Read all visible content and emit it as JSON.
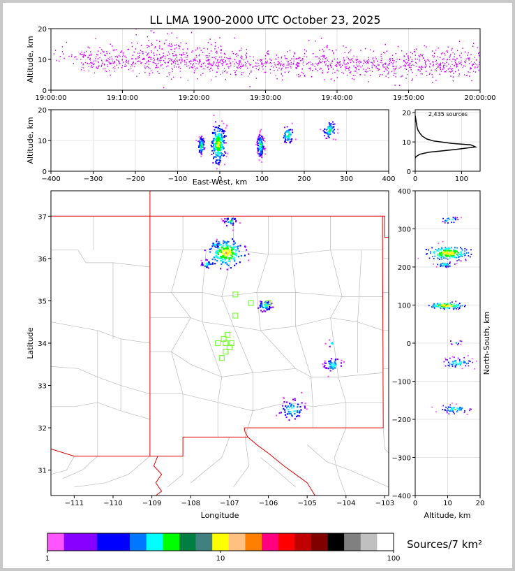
{
  "title": "LL LMA 1900-2000 UTC October 23, 2025",
  "colorbar": {
    "label": "Sources/7 km²",
    "ticks": [
      "1",
      "10",
      "100"
    ],
    "colors": [
      "#ff55ff",
      "#8800ff",
      "#8800ff",
      "#0000ff",
      "#0000ff",
      "#0077ff",
      "#00ffff",
      "#00ff00",
      "#008040",
      "#408080",
      "#ffff00",
      "#ffc080",
      "#ff8000",
      "#ff0080",
      "#ff0000",
      "#c00000",
      "#800000",
      "#000000",
      "#808080",
      "#c0c0c0",
      "#ffffff"
    ]
  },
  "chart_data": [
    {
      "id": "time-height",
      "type": "scatter",
      "ylabel": "Altitude, km",
      "xticks": [
        "19:00:00",
        "19:10:00",
        "19:20:00",
        "19:30:00",
        "19:40:00",
        "19:50:00",
        "20:00:00"
      ],
      "yticks": [
        "0",
        "10",
        "20"
      ],
      "xlim": [
        "19:00:00",
        "20:00:00"
      ],
      "ylim": [
        0,
        20
      ],
      "point_color": "#cc00ff",
      "point_clusters_minutes": [
        [
          5,
          12,
          2
        ],
        [
          11,
          11,
          2
        ],
        [
          14,
          13,
          3
        ],
        [
          17,
          12,
          3
        ],
        [
          19,
          11,
          3
        ],
        [
          24,
          10,
          3
        ],
        [
          27,
          9,
          2
        ],
        [
          35,
          9,
          3
        ],
        [
          39,
          9,
          3
        ],
        [
          45,
          8,
          3
        ],
        [
          50,
          9,
          3
        ],
        [
          55,
          9,
          3
        ],
        [
          58,
          9,
          3
        ]
      ]
    },
    {
      "id": "east-west-altitude",
      "type": "scatter",
      "xlabel": "East-West, km",
      "ylabel": "Altitude, km",
      "xticks": [
        "−400",
        "−300",
        "−200",
        "−100",
        "0",
        "100",
        "200",
        "300",
        "400"
      ],
      "yticks": [
        "0",
        "10",
        "20"
      ],
      "xlim": [
        -400,
        400
      ],
      "ylim": [
        0,
        20
      ],
      "clusters": [
        {
          "x": -45,
          "y": 8.5,
          "sx": 4,
          "sy": 1.5,
          "n": 80
        },
        {
          "x": -5,
          "y": 9,
          "sx": 8,
          "sy": 3,
          "n": 260
        },
        {
          "x": 95,
          "y": 8.5,
          "sx": 4,
          "sy": 2,
          "n": 120
        },
        {
          "x": 160,
          "y": 12,
          "sx": 7,
          "sy": 1.5,
          "n": 60
        },
        {
          "x": 258,
          "y": 13.5,
          "sx": 8,
          "sy": 1.5,
          "n": 70
        }
      ]
    },
    {
      "id": "altitude-histogram",
      "type": "line",
      "annotation": "2,435 sources",
      "xticks": [
        "0",
        "100"
      ],
      "yticks": [
        "0",
        "10",
        "20"
      ],
      "xlim": [
        0,
        140
      ],
      "ylim": [
        0,
        21
      ],
      "profile": [
        [
          0,
          4.5
        ],
        [
          2,
          5
        ],
        [
          10,
          5.8
        ],
        [
          30,
          6.5
        ],
        [
          60,
          7
        ],
        [
          90,
          7.5
        ],
        [
          130,
          8.3
        ],
        [
          120,
          9
        ],
        [
          80,
          9.5
        ],
        [
          40,
          10.3
        ],
        [
          25,
          11
        ],
        [
          15,
          12
        ],
        [
          10,
          13
        ],
        [
          6,
          14
        ],
        [
          4,
          15
        ],
        [
          3,
          16
        ],
        [
          2,
          17
        ],
        [
          1,
          18
        ],
        [
          0,
          19
        ]
      ]
    },
    {
      "id": "plan-view-map",
      "type": "scatter",
      "xlabel": "Longitude",
      "ylabel": "Latitude",
      "xticks": [
        "−111",
        "−110",
        "−109",
        "−108",
        "−107",
        "−106",
        "−105",
        "−104",
        "−103"
      ],
      "yticks": [
        "31",
        "32",
        "33",
        "34",
        "35",
        "36",
        "37"
      ],
      "xlim": [
        -111.6,
        -102.9
      ],
      "ylim": [
        30.4,
        37.6
      ],
      "stations_marker": "light-green open squares",
      "stations": [
        [
          -107.15,
          34.1
        ],
        [
          -107.3,
          34.0
        ],
        [
          -107.1,
          34.0
        ],
        [
          -106.95,
          34.0
        ],
        [
          -107.0,
          33.9
        ],
        [
          -107.1,
          33.8
        ],
        [
          -107.2,
          33.65
        ],
        [
          -107.05,
          34.2
        ],
        [
          -106.85,
          34.65
        ],
        [
          -106.85,
          35.15
        ],
        [
          -106.45,
          34.95
        ],
        [
          -106.0,
          34.95
        ]
      ],
      "clusters": [
        {
          "lon": -107.0,
          "lat": 36.9,
          "s": 0.06,
          "n": 30
        },
        {
          "lon": -107.4,
          "lat": 36.35,
          "s": 0.05,
          "n": 20
        },
        {
          "lon": -107.1,
          "lat": 36.15,
          "s": 0.14,
          "n": 180
        },
        {
          "lon": -107.6,
          "lat": 35.88,
          "s": 0.05,
          "n": 25
        },
        {
          "lon": -106.1,
          "lat": 34.9,
          "s": 0.07,
          "n": 50
        },
        {
          "lon": -104.35,
          "lat": 33.5,
          "s": 0.08,
          "n": 45
        },
        {
          "lon": -104.4,
          "lat": 34.0,
          "s": 0.04,
          "n": 8
        },
        {
          "lon": -105.4,
          "lat": 32.45,
          "s": 0.12,
          "n": 60
        }
      ]
    },
    {
      "id": "altitude-north-south",
      "type": "scatter",
      "xlabel": "Altitude, km",
      "ylabel": "North-South, km",
      "xticks": [
        "0",
        "10",
        "20"
      ],
      "yticks": [
        "400",
        "300",
        "200",
        "100",
        "0",
        "−100",
        "−200",
        "−300",
        "−400"
      ],
      "xlim": [
        0,
        20
      ],
      "ylim": [
        -400,
        400
      ],
      "clusters": [
        {
          "alt": 10.5,
          "ns": 325,
          "sa": 1.5,
          "sn": 5,
          "n": 25
        },
        {
          "alt": 10,
          "ns": 238,
          "sa": 3,
          "sn": 8,
          "n": 220
        },
        {
          "alt": 9,
          "ns": 208,
          "sa": 1.5,
          "sn": 4,
          "n": 40
        },
        {
          "alt": 9.5,
          "ns": 100,
          "sa": 2.5,
          "sn": 4,
          "n": 110
        },
        {
          "alt": 12,
          "ns": 5,
          "sa": 1,
          "sn": 4,
          "n": 10
        },
        {
          "alt": 13,
          "ns": -50,
          "sa": 2.5,
          "sn": 7,
          "n": 60
        },
        {
          "alt": 12,
          "ns": -172,
          "sa": 2.5,
          "sn": 6,
          "n": 60
        }
      ]
    }
  ]
}
